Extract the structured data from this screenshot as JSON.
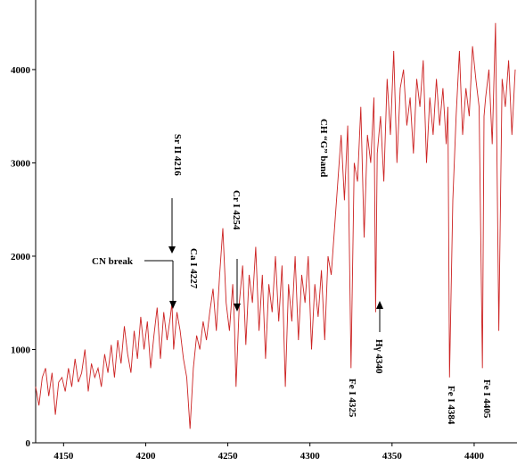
{
  "chart_data": {
    "type": "line",
    "title": "",
    "xlabel": "",
    "ylabel": "",
    "xlim": [
      4133,
      4425
    ],
    "ylim": [
      0,
      4650
    ],
    "xticks": [
      4150,
      4200,
      4250,
      4300,
      4350,
      4400
    ],
    "yticks": [
      0,
      1000,
      2000,
      3000,
      4000
    ],
    "grid": false,
    "series_color": "#cc2222",
    "series": [
      {
        "x": [
          4133,
          4135,
          4137,
          4139,
          4141,
          4143,
          4145,
          4147,
          4149,
          4151,
          4153,
          4155,
          4157,
          4159,
          4161,
          4163,
          4165,
          4167,
          4169,
          4171,
          4173,
          4175,
          4177,
          4179,
          4181,
          4183,
          4185,
          4187,
          4189,
          4191,
          4193,
          4195,
          4197,
          4199,
          4201,
          4203,
          4205,
          4207,
          4209,
          4211,
          4213,
          4215,
          4216,
          4217,
          4219,
          4221,
          4223,
          4225,
          4227,
          4229,
          4231,
          4233,
          4235,
          4237,
          4239,
          4241,
          4243,
          4245,
          4247,
          4249,
          4251,
          4253,
          4254,
          4255,
          4257,
          4259,
          4261,
          4263,
          4265,
          4267,
          4269,
          4271,
          4273,
          4275,
          4277,
          4279,
          4281,
          4283,
          4285,
          4287,
          4289,
          4291,
          4293,
          4295,
          4297,
          4299,
          4301,
          4303,
          4305,
          4307,
          4309,
          4311,
          4313,
          4315,
          4317,
          4319,
          4321,
          4323,
          4325,
          4327,
          4329,
          4331,
          4333,
          4335,
          4337,
          4339,
          4340,
          4341,
          4343,
          4345,
          4347,
          4349,
          4351,
          4353,
          4355,
          4357,
          4359,
          4361,
          4363,
          4365,
          4367,
          4369,
          4371,
          4373,
          4375,
          4377,
          4379,
          4381,
          4383,
          4384,
          4385,
          4387,
          4389,
          4391,
          4393,
          4395,
          4397,
          4399,
          4401,
          4403,
          4405,
          4406,
          4407,
          4409,
          4411,
          4413,
          4415,
          4417,
          4419,
          4421,
          4423,
          4425
        ],
        "y": [
          600,
          400,
          700,
          800,
          500,
          750,
          300,
          650,
          700,
          550,
          800,
          600,
          900,
          650,
          750,
          1000,
          550,
          850,
          700,
          800,
          600,
          950,
          750,
          1050,
          700,
          1100,
          850,
          1250,
          950,
          750,
          1200,
          900,
          1350,
          1000,
          1300,
          800,
          1150,
          1450,
          900,
          1400,
          1100,
          1350,
          1500,
          1000,
          1400,
          1200,
          900,
          700,
          150,
          800,
          1150,
          1000,
          1300,
          1100,
          1400,
          1650,
          1200,
          1800,
          2300,
          1500,
          1200,
          1700,
          1300,
          600,
          1500,
          1900,
          1050,
          1800,
          1500,
          2100,
          1200,
          1800,
          900,
          1700,
          1400,
          2000,
          1300,
          1900,
          600,
          1700,
          1300,
          2000,
          1100,
          1800,
          1500,
          2000,
          1000,
          1700,
          1350,
          1850,
          1100,
          2000,
          1800,
          2300,
          2800,
          3300,
          2600,
          3400,
          800,
          3000,
          2800,
          3600,
          2200,
          3300,
          3000,
          3700,
          1400,
          3100,
          3500,
          2800,
          3900,
          3300,
          4200,
          3000,
          3800,
          4000,
          3400,
          3700,
          3100,
          3900,
          3600,
          4100,
          3000,
          3700,
          3300,
          3900,
          3400,
          3800,
          3200,
          3600,
          700,
          2600,
          3500,
          4200,
          3300,
          3800,
          3500,
          4250,
          3900,
          3600,
          800,
          3500,
          3700,
          4000,
          3200,
          4500,
          1200,
          3900,
          3600,
          4100,
          3300,
          4000
        ]
      }
    ],
    "annotations": [
      {
        "text": "Sr II 4216"
      },
      {
        "text": "CN break"
      },
      {
        "text": "Ca I 4227"
      },
      {
        "text": "Cr I 4254"
      },
      {
        "text": "CH “G” band"
      },
      {
        "text": "Fe I 4325"
      },
      {
        "text": "Hγ 4340"
      },
      {
        "text": "Fe I 4384"
      },
      {
        "text": "Fe I 4405"
      }
    ]
  }
}
